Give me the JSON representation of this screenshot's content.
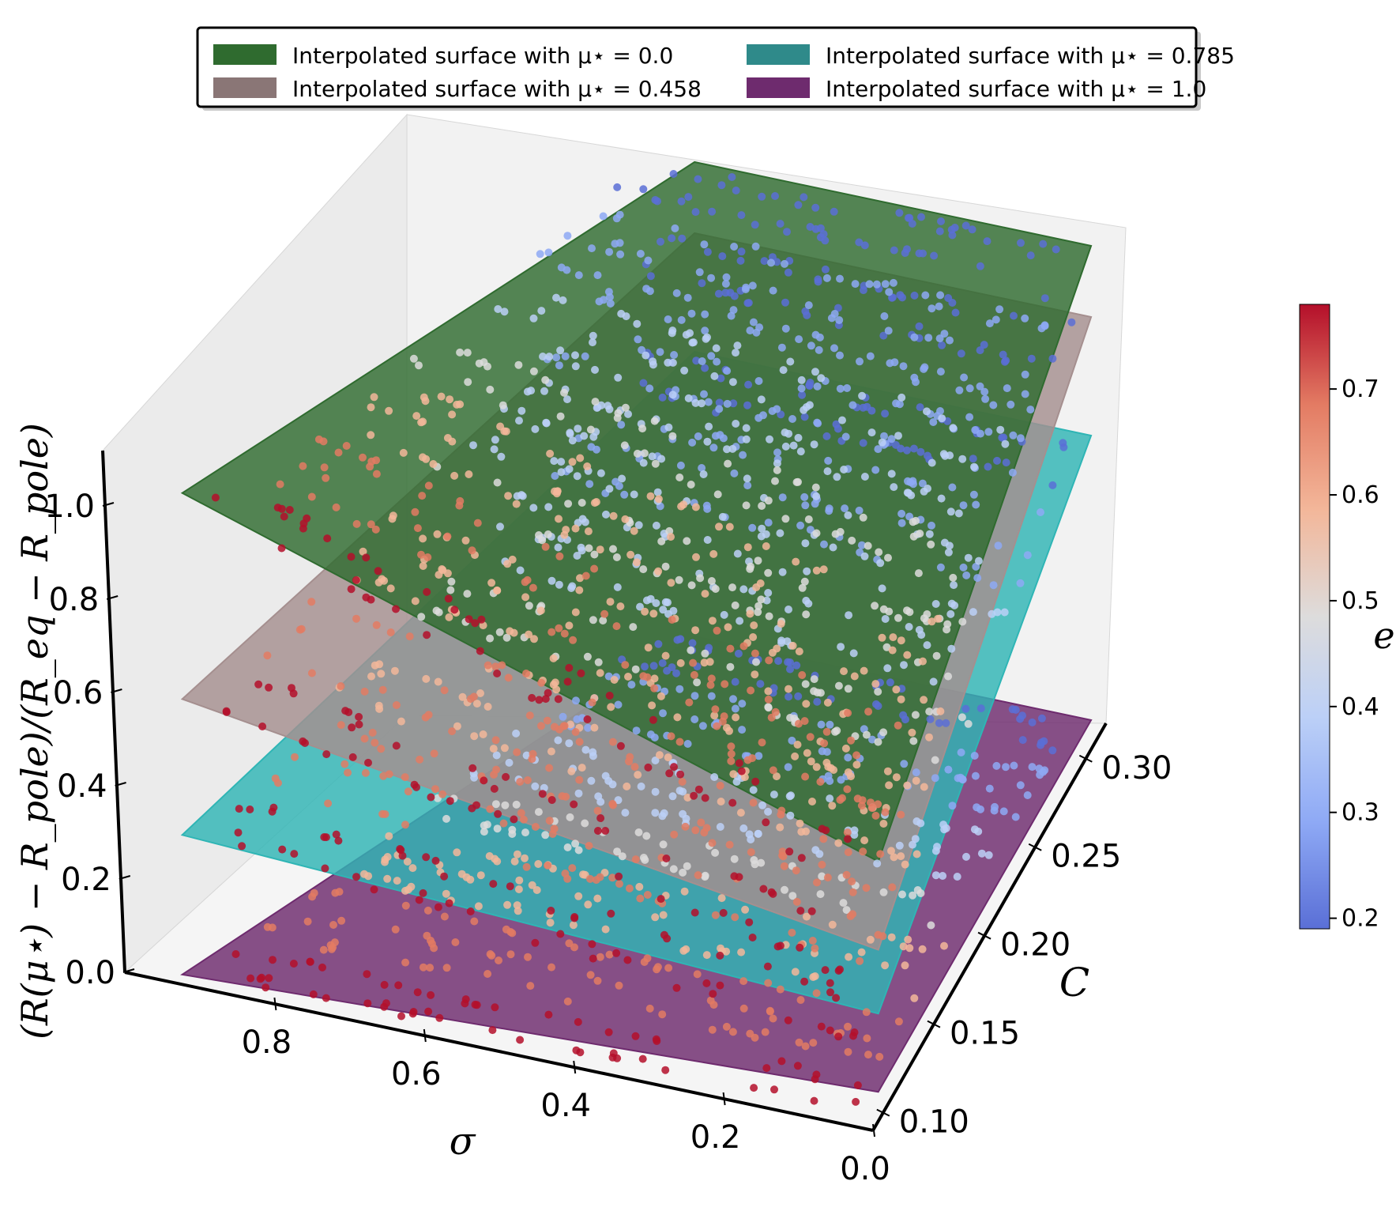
{
  "chart_data": {
    "type": "scatter",
    "projection": "3d",
    "legend": {
      "placement": "top-center",
      "columns": 2,
      "prefix": "Interpolated surface with ",
      "symbol": "μ⋆",
      "equals": " = ",
      "entries": [
        {
          "mu": "0.0",
          "color": "#2f6b2f"
        },
        {
          "mu": "0.458",
          "color": "#8a7676"
        },
        {
          "mu": "0.785",
          "color": "#2f8a8a"
        },
        {
          "mu": "1.0",
          "color": "#6e2b6e"
        }
      ]
    },
    "axes": {
      "x": {
        "label": "σ",
        "ticks": [
          "0.8",
          "0.6",
          "0.4",
          "0.2",
          "0.0"
        ],
        "range": [
          0.0,
          1.0
        ],
        "inverted": true
      },
      "y": {
        "label": "C",
        "ticks": [
          "0.10",
          "0.15",
          "0.20",
          "0.25",
          "0.30"
        ],
        "range": [
          0.09,
          0.32
        ]
      },
      "z": {
        "label": "(R(μ⋆) − R_pole)/(R_eq − R_pole)",
        "ticks": [
          "0.0",
          "0.2",
          "0.4",
          "0.6",
          "0.8",
          "1.0"
        ],
        "range": [
          0.0,
          1.1
        ]
      }
    },
    "surfaces": [
      {
        "mu": 0.0,
        "color": "#2f6b2f",
        "z_at_high_C": 1.0,
        "z_at_high_sigma": 1.06
      },
      {
        "mu": 0.458,
        "color": "#a58f8f",
        "z_at_high_C": 0.85,
        "z_at_high_sigma": 0.6
      },
      {
        "mu": 0.785,
        "color": "#2fb5b5",
        "z_at_high_C": 0.6,
        "z_at_high_sigma": 0.3
      },
      {
        "mu": 1.0,
        "color": "#6e2b6e",
        "z_at_high_C": 0.0,
        "z_at_high_sigma": 0.0
      }
    ],
    "colorbar": {
      "label": "e",
      "ticks": [
        "0.2",
        "0.3",
        "0.4",
        "0.5",
        "0.6",
        "0.7"
      ],
      "range": [
        0.19,
        0.78
      ],
      "colormap": "coolwarm",
      "colors": [
        "#5a6fd6",
        "#8ea9f5",
        "#bcd0f7",
        "#dddcdc",
        "#f3b79a",
        "#e37b63",
        "#b40f2a"
      ]
    }
  }
}
